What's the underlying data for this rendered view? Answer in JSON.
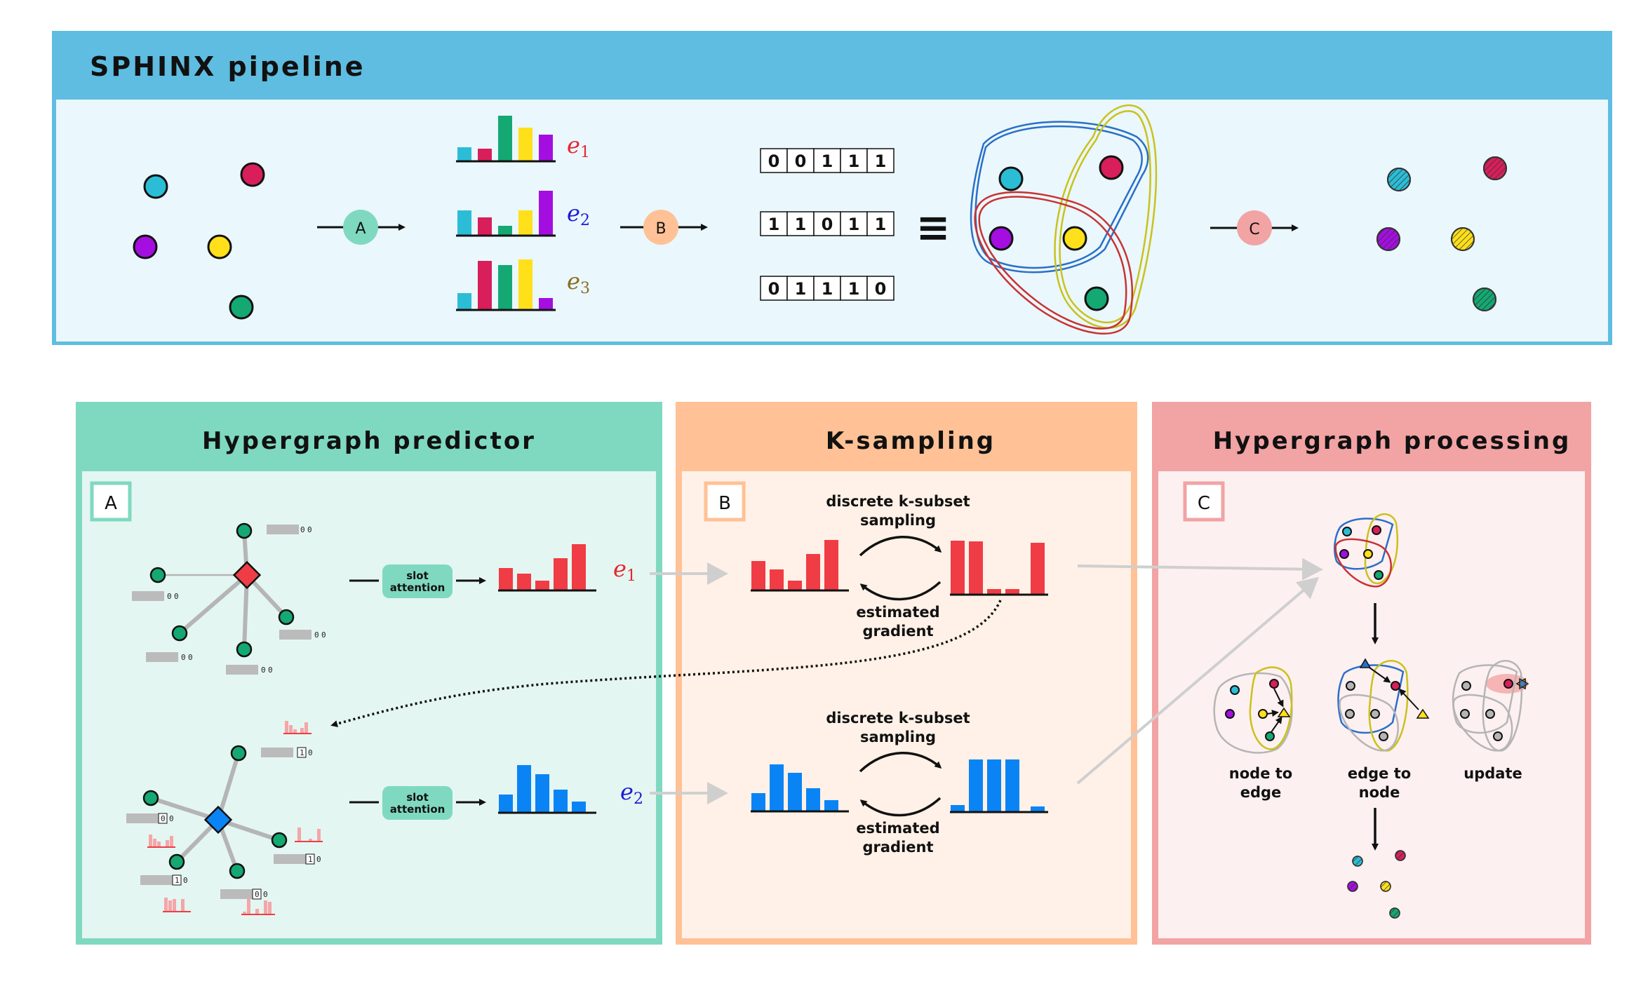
{
  "pipeline": {
    "title": "SPHINX pipeline",
    "edges": [
      {
        "symbol": "e",
        "index": "1",
        "color": "#e5262e"
      },
      {
        "symbol": "e",
        "index": "2",
        "color": "#1b1bd6"
      },
      {
        "symbol": "e",
        "index": "3",
        "color": "#8a6d1e"
      }
    ],
    "stages": [
      "A",
      "B",
      "C"
    ],
    "incidence": [
      [
        "0",
        "0",
        "1",
        "1",
        "1"
      ],
      [
        "1",
        "1",
        "0",
        "1",
        "1"
      ],
      [
        "0",
        "1",
        "1",
        "1",
        "0"
      ]
    ],
    "equiv": "≡"
  },
  "colors": {
    "cyan": "#2bbdd6",
    "crimson": "#d81e5b",
    "purple": "#a40ee0",
    "yellow": "#ffe01a",
    "green": "#14a873",
    "green_panel": "#7fd9c0",
    "orange_panel": "#ffc195",
    "pink_panel": "#f2a3a4",
    "header_blue": "#5fbde1",
    "red_bar": "#f03c45",
    "blue_bar": "#0a84f5"
  },
  "panels": {
    "predictor": {
      "title": "Hypergraph predictor",
      "badge": "A",
      "slot_label_1": "slot",
      "slot_label_2": "attention",
      "e1": {
        "symbol": "e",
        "index": "1"
      },
      "e2": {
        "symbol": "e",
        "index": "2"
      }
    },
    "sampling": {
      "title": "K-sampling",
      "badge": "B",
      "top_label_1": "discrete k-subset",
      "top_label_2": "sampling",
      "bottom_label_1": "estimated",
      "bottom_label_2": "gradient"
    },
    "processing": {
      "title": "Hypergraph processing",
      "badge": "C",
      "node_to_edge_1": "node to",
      "node_to_edge_2": "edge",
      "edge_to_node_1": "edge to",
      "edge_to_node_2": "node",
      "update": "update"
    }
  },
  "tiny_digits": {
    "zero": "0",
    "one": "1"
  }
}
